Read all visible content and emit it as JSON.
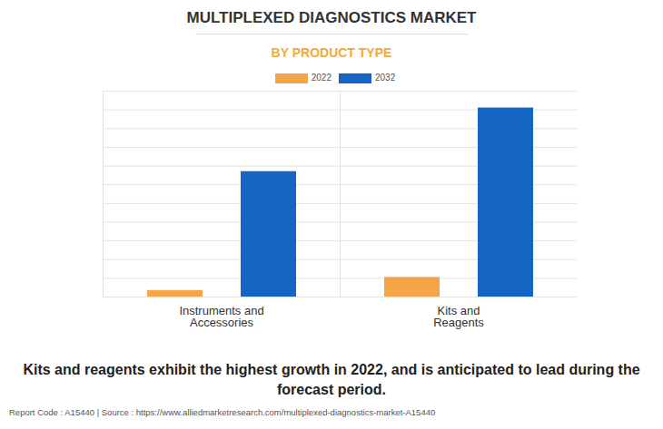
{
  "chart_data": {
    "type": "bar",
    "title": "MULTIPLEXED DIAGNOSTICS MARKET",
    "subtitle": "BY PRODUCT TYPE",
    "categories": [
      "Instruments and\nAccessories",
      "Kits and\nReagents"
    ],
    "series": [
      {
        "name": "2022",
        "color": "#f4a548",
        "values": [
          0.35,
          1.05
        ]
      },
      {
        "name": "2032",
        "color": "#1565c4",
        "values": [
          6.7,
          10.1
        ]
      }
    ],
    "ylim": [
      0,
      11
    ],
    "yticks": [
      0,
      1,
      2,
      3,
      4,
      5,
      6,
      7,
      8,
      9,
      10,
      11
    ],
    "grid": true,
    "legend": "top",
    "tick_labels": "x",
    "caption": "Kits and reagents exhibit the highest growth in 2022, and is anticipated to lead during the forecast period.",
    "source": "Report Code : A15440  |  Source : https://www.alliedmarketresearch.com/multiplexed-diagnostics-market-A15440"
  }
}
